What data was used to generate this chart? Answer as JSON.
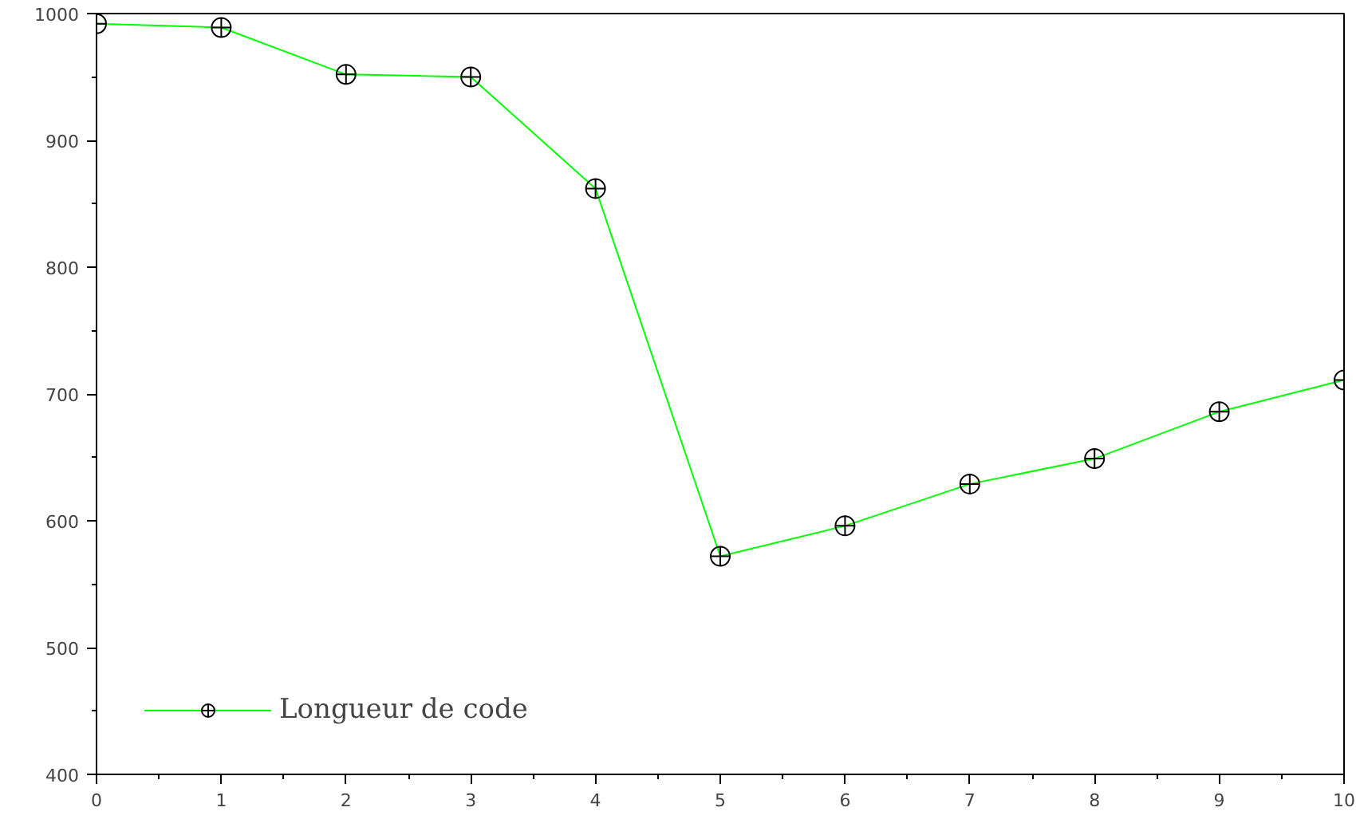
{
  "chart_data": {
    "type": "line",
    "x": [
      0,
      1,
      2,
      3,
      4,
      5,
      6,
      7,
      8,
      9,
      10
    ],
    "series": [
      {
        "name": "Longueur de code",
        "color": "#00ff00",
        "values": [
          992,
          989,
          952,
          950,
          862,
          572,
          596,
          629,
          649,
          686,
          711
        ]
      }
    ],
    "xlim": [
      0,
      10
    ],
    "ylim": [
      400,
      1000
    ],
    "xticks": [
      0,
      1,
      2,
      3,
      4,
      5,
      6,
      7,
      8,
      9,
      10
    ],
    "yticks": [
      400,
      500,
      600,
      700,
      800,
      900,
      1000
    ],
    "grid": false,
    "legend": "bottom left",
    "marker": "circle",
    "line_style": "solid"
  }
}
